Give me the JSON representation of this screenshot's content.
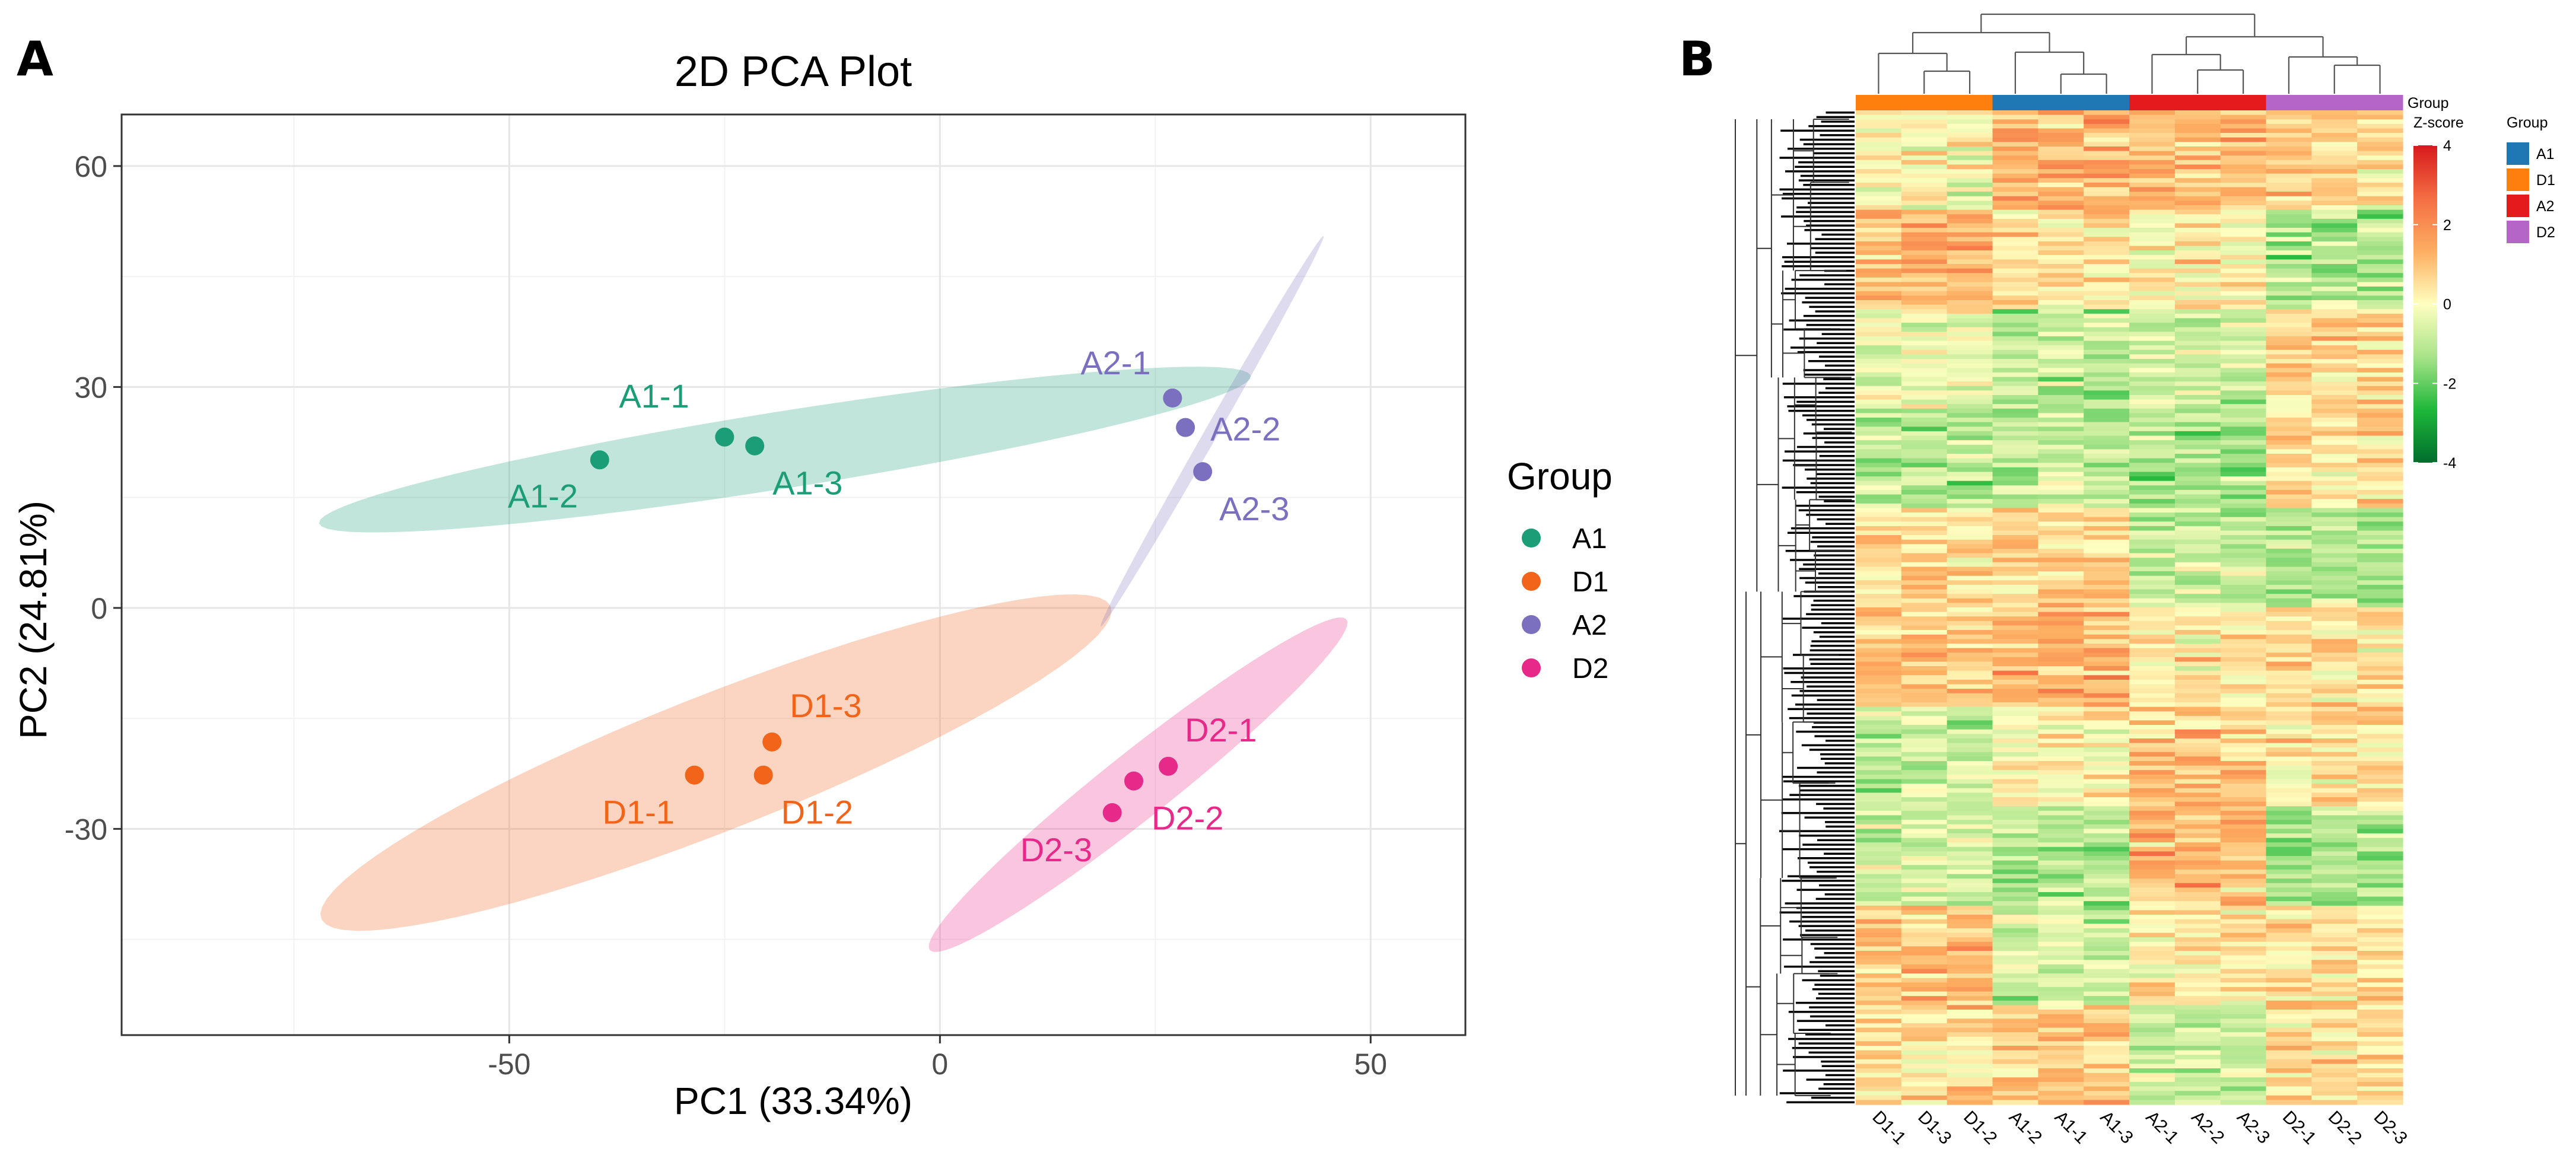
{
  "panel_a": {
    "letter": "A"
  },
  "panel_b": {
    "letter": "B"
  },
  "colors": {
    "A1": "#1b9e77",
    "D1": "#f26419",
    "A2": "#7b6fbf",
    "D2": "#e7298a"
  },
  "chart_data": [
    {
      "type": "scatter",
      "title": "2D PCA Plot",
      "xlabel": "PC1 (33.34%)",
      "ylabel": "PC2 (24.81%)",
      "xlim": [
        -95,
        61
      ],
      "ylim": [
        -58,
        67
      ],
      "xticks": [
        -50,
        0,
        50
      ],
      "yticks": [
        -30,
        0,
        30,
        60
      ],
      "xtick_labels": [
        "-50",
        "0",
        "50"
      ],
      "ytick_labels": [
        "-30",
        "0",
        "30",
        "60"
      ],
      "grid": true,
      "legend_title": "Group",
      "legend_position": "right",
      "series": [
        {
          "name": "A1",
          "points": [
            {
              "label": "A1-1",
              "x": -25.0,
              "y": 23.2
            },
            {
              "label": "A1-2",
              "x": -39.5,
              "y": 20.1
            },
            {
              "label": "A1-3",
              "x": -21.5,
              "y": 22.0
            }
          ]
        },
        {
          "name": "D1",
          "points": [
            {
              "label": "D1-1",
              "x": -28.5,
              "y": -22.7
            },
            {
              "label": "D1-2",
              "x": -20.5,
              "y": -22.7
            },
            {
              "label": "D1-3",
              "x": -19.5,
              "y": -18.2
            }
          ]
        },
        {
          "name": "A2",
          "points": [
            {
              "label": "A2-1",
              "x": 27.0,
              "y": 28.5
            },
            {
              "label": "A2-2",
              "x": 28.5,
              "y": 24.5
            },
            {
              "label": "A2-3",
              "x": 30.5,
              "y": 18.5
            }
          ]
        },
        {
          "name": "D2",
          "points": [
            {
              "label": "D2-1",
              "x": 26.5,
              "y": -21.5
            },
            {
              "label": "D2-2",
              "x": 22.5,
              "y": -23.5
            },
            {
              "label": "D2-3",
              "x": 20.0,
              "y": -27.8
            }
          ]
        }
      ],
      "ellipses": [
        {
          "group": "A1",
          "cx": -18,
          "cy": 21.5,
          "rx": 55,
          "ry": 5.2,
          "angle_deg": 10.5
        },
        {
          "group": "D1",
          "cx": -26,
          "cy": -21,
          "rx": 50.5,
          "ry": 9,
          "angle_deg": 25
        },
        {
          "group": "A2",
          "cx": 31.6,
          "cy": 24,
          "rx": 29.5,
          "ry": 0.8,
          "angle_deg": 64
        },
        {
          "group": "D2",
          "cx": 23,
          "cy": -24,
          "rx": 33,
          "ry": 4.2,
          "angle_deg": 43
        }
      ]
    },
    {
      "type": "heatmap",
      "columns": [
        "D1-1",
        "D1-3",
        "D1-2",
        "A1-2",
        "A1-1",
        "A1-3",
        "A2-1",
        "A2-2",
        "A2-3",
        "D2-1",
        "D2-2",
        "D2-3"
      ],
      "column_groups": [
        "D1",
        "D1",
        "D1",
        "A1",
        "A1",
        "A1",
        "A2",
        "A2",
        "A2",
        "D2",
        "D2",
        "D2"
      ],
      "group_bar_label": "Group",
      "colorbar": {
        "title": "Z-score",
        "min": -4,
        "max": 4,
        "ticks": [
          -4,
          -2,
          0,
          2,
          4
        ],
        "tick_labels": [
          "-4",
          "-2",
          "0",
          "2",
          "4"
        ]
      },
      "legend_title": "Group",
      "legend_entries": [
        "A1",
        "D1",
        "A2",
        "D2"
      ],
      "legend_colors": {
        "A1": "#1f78b4",
        "D1": "#ff7f0e",
        "A2": "#e41a1c",
        "D2": "#b565c8"
      },
      "colormap": [
        "#006d2c",
        "#1eb83a",
        "#a8e389",
        "#ffffbf",
        "#fdae61",
        "#f46d43",
        "#d7191c"
      ],
      "row_count": 220
    }
  ]
}
